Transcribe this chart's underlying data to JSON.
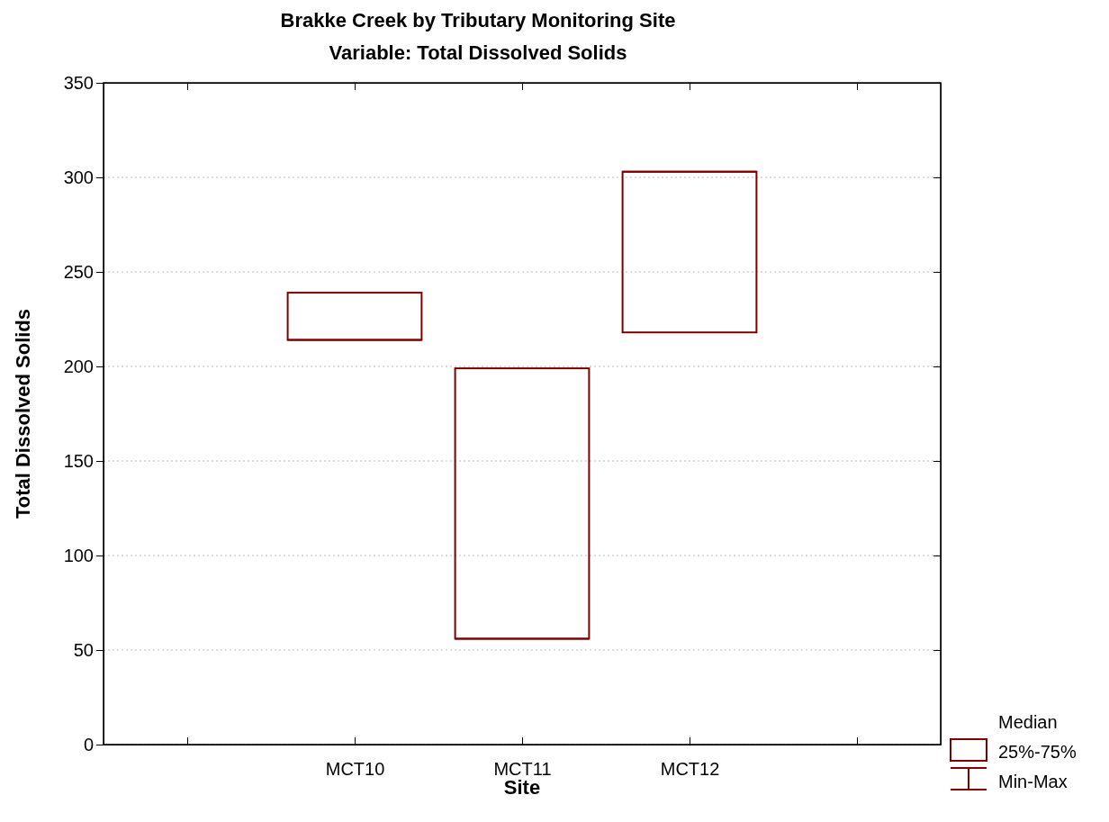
{
  "chart_data": {
    "type": "box",
    "title": "Brakke Creek by Tributary Monitoring Site",
    "subtitle": "Variable: Total Dissolved Solids",
    "xlabel": "Site",
    "ylabel": "Total Dissolved Solids",
    "categories": [
      null,
      "MCT10",
      "MCT11",
      "MCT12",
      null
    ],
    "boxes": [
      null,
      {
        "low": 214,
        "q1": 214,
        "median": 214,
        "q3": 239,
        "high": 239
      },
      {
        "low": 56,
        "q1": 56,
        "median": 56,
        "q3": 199,
        "high": 199
      },
      {
        "low": 218,
        "q1": 218,
        "median": 303,
        "q3": 303,
        "high": 303
      },
      null
    ],
    "color": "#800000",
    "ylim": [
      0,
      350
    ],
    "yticks": [
      0,
      50,
      100,
      150,
      200,
      250,
      300,
      350
    ],
    "grid": "y",
    "annotations": [
      "Median",
      "25%-75%",
      "Min-Max"
    ]
  }
}
